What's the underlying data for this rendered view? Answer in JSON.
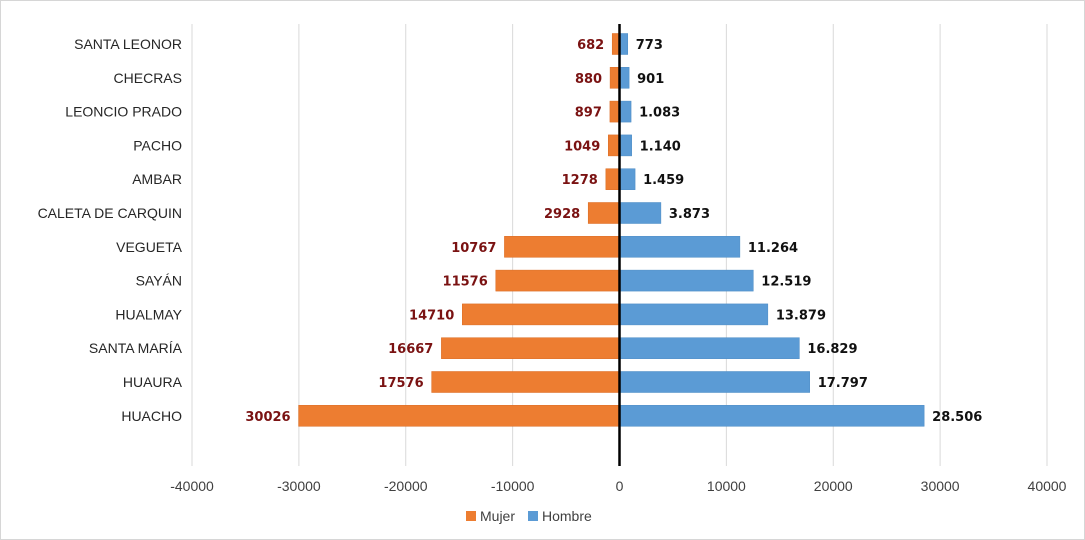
{
  "chart_data": {
    "type": "bar",
    "orientation": "horizontal",
    "categories": [
      "SANTA LEONOR",
      "CHECRAS",
      "LEONCIO PRADO",
      "PACHO",
      "AMBAR",
      "CALETA DE CARQUIN",
      "VEGUETA",
      "SAYÁN",
      "HUALMAY",
      "SANTA MARÍA",
      "HUAURA",
      "HUACHO"
    ],
    "series": [
      {
        "name": "Mujer",
        "color": "#ed7d31",
        "values": [
          -682,
          -880,
          -897,
          -1049,
          -1278,
          -2928,
          -10767,
          -11576,
          -14710,
          -16667,
          -17576,
          -30026
        ],
        "labels": [
          "682",
          "880",
          "897",
          "1049",
          "1278",
          "2928",
          "10767",
          "11576",
          "14710",
          "16667",
          "17576",
          "30026"
        ]
      },
      {
        "name": "Hombre",
        "color": "#5b9bd5",
        "values": [
          773,
          901,
          1083,
          1140,
          1459,
          3873,
          11264,
          12519,
          13879,
          16829,
          17797,
          28506
        ],
        "labels": [
          "773",
          "901",
          "1.083",
          "1.140",
          "1.459",
          "3.873",
          "11.264",
          "12.519",
          "13.879",
          "16.829",
          "17.797",
          "28.506"
        ]
      }
    ],
    "xlim": [
      -40000,
      40000
    ],
    "xticks": [
      -40000,
      -30000,
      -20000,
      -10000,
      0,
      10000,
      20000,
      30000,
      40000
    ],
    "xtick_labels": [
      "-40000",
      "-30000",
      "-20000",
      "-10000",
      "0",
      "10000",
      "20000",
      "30000",
      "40000"
    ],
    "grid": "vertical",
    "legend": "bottom-center",
    "title": "",
    "xlabel": "",
    "ylabel": ""
  }
}
